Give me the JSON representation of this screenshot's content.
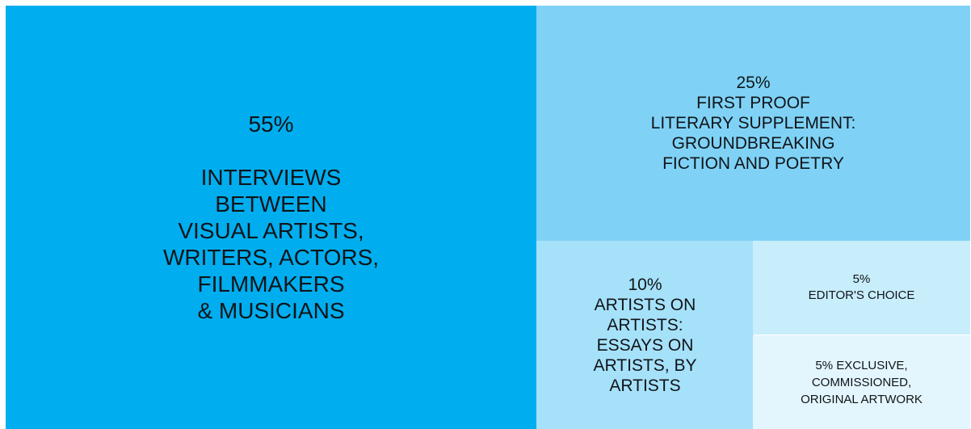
{
  "chart_data": {
    "type": "treemap",
    "title": "",
    "items": [
      {
        "value": 55,
        "value_label": "55%",
        "label": "INTERVIEWS\nBETWEEN\nVISUAL ARTISTS,\nWRITERS, ACTORS,\nFILMMAKERS\n& MUSICIANS",
        "color": "#00AEEF"
      },
      {
        "value": 25,
        "value_label": "25%",
        "label": "FIRST PROOF\nLITERARY SUPPLEMENT:\nGROUNDBREAKING\nFICTION AND POETRY",
        "color": "#7FD2F6"
      },
      {
        "value": 10,
        "value_label": "10%",
        "label": "ARTISTS ON\nARTISTS:\nESSAYS ON\nARTISTS, BY\nARTISTS",
        "color": "#A6E1FA"
      },
      {
        "value": 5,
        "value_label": "5%",
        "label": "EDITOR'S CHOICE",
        "color": "#C8EDFB"
      },
      {
        "value": 5,
        "value_label": "5%  EXCLUSIVE,",
        "label": "COMMISSIONED,\nORIGINAL  ARTWORK",
        "color": "#E3F6FD"
      }
    ]
  }
}
